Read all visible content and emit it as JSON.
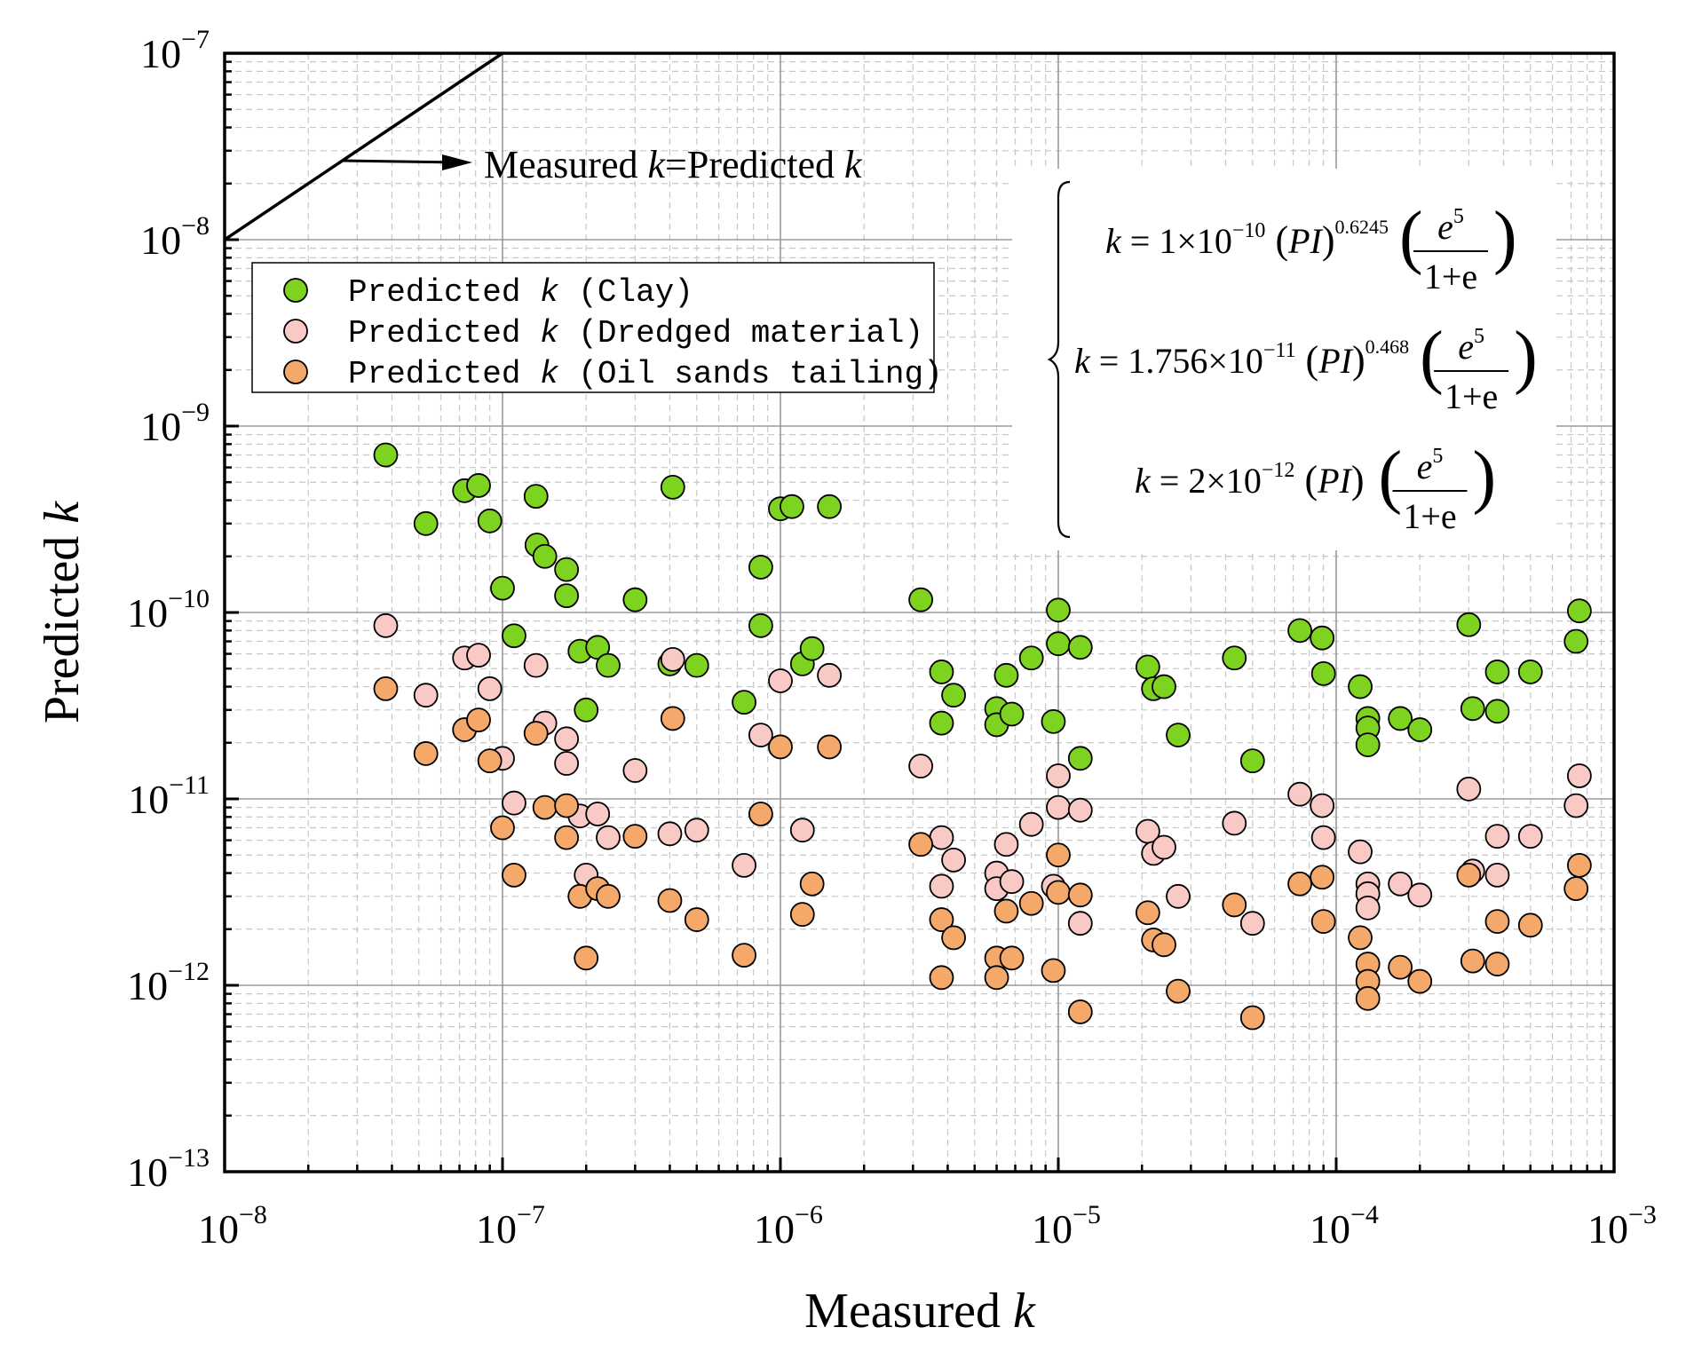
{
  "chart_data": {
    "type": "scatter",
    "title": "",
    "xlabel": "Measured",
    "ylabel": "Predicted",
    "axis_variable": "k",
    "xscale": "log",
    "yscale": "log",
    "xlim": [
      1e-08,
      0.001
    ],
    "ylim": [
      1e-13,
      1e-07
    ],
    "x_ticks": [
      {
        "base": "10",
        "exp": "−8"
      },
      {
        "base": "10",
        "exp": "−7"
      },
      {
        "base": "10",
        "exp": "−6"
      },
      {
        "base": "10",
        "exp": "−5"
      },
      {
        "base": "10",
        "exp": "−4"
      },
      {
        "base": "10",
        "exp": "−3"
      }
    ],
    "y_ticks": [
      {
        "base": "10",
        "exp": "−13"
      },
      {
        "base": "10",
        "exp": "−12"
      },
      {
        "base": "10",
        "exp": "−11"
      },
      {
        "base": "10",
        "exp": "−10"
      },
      {
        "base": "10",
        "exp": "−9"
      },
      {
        "base": "10",
        "exp": "−8"
      },
      {
        "base": "10",
        "exp": "−7"
      }
    ],
    "grid": true,
    "legend_position": "upper-left",
    "reference_line": {
      "label_prefix": "Measured ",
      "label_mid": "=Predicted ",
      "var": "k"
    },
    "series": [
      {
        "name": "Predicted k (Clay)",
        "legend_prefix": "Predicted ",
        "legend_var": "k",
        "legend_suffix": " (Clay)",
        "color": "#7ed321",
        "points": [
          [
            3.8e-08,
            7e-10
          ],
          [
            5.3e-08,
            3e-10
          ],
          [
            7.3e-08,
            4.5e-10
          ],
          [
            8.2e-08,
            4.8e-10
          ],
          [
            9e-08,
            3.1e-10
          ],
          [
            1e-07,
            1.35e-10
          ],
          [
            1.1e-07,
            7.5e-11
          ],
          [
            1.32e-07,
            4.2e-10
          ],
          [
            1.33e-07,
            2.3e-10
          ],
          [
            1.42e-07,
            2e-10
          ],
          [
            1.7e-07,
            1.7e-10
          ],
          [
            1.7e-07,
            1.23e-10
          ],
          [
            1.9e-07,
            6.2e-11
          ],
          [
            2e-07,
            3e-11
          ],
          [
            2.2e-07,
            6.5e-11
          ],
          [
            2.4e-07,
            5.2e-11
          ],
          [
            3e-07,
            1.17e-10
          ],
          [
            4e-07,
            5.3e-11
          ],
          [
            4.1e-07,
            4.7e-10
          ],
          [
            5e-07,
            5.2e-11
          ],
          [
            7.4e-07,
            3.3e-11
          ],
          [
            8.5e-07,
            1.75e-10
          ],
          [
            8.5e-07,
            8.5e-11
          ],
          [
            1e-06,
            3.6e-10
          ],
          [
            1.1e-06,
            3.7e-10
          ],
          [
            1.2e-06,
            5.3e-11
          ],
          [
            1.3e-06,
            6.4e-11
          ],
          [
            1.5e-06,
            3.7e-10
          ],
          [
            3.2e-06,
            1.17e-10
          ],
          [
            3.8e-06,
            4.8e-11
          ],
          [
            4.2e-06,
            3.6e-11
          ],
          [
            3.8e-06,
            2.55e-11
          ],
          [
            6e-06,
            3.05e-11
          ],
          [
            6e-06,
            2.5e-11
          ],
          [
            6.5e-06,
            4.6e-11
          ],
          [
            6.8e-06,
            2.85e-11
          ],
          [
            8e-06,
            5.7e-11
          ],
          [
            9.6e-06,
            2.6e-11
          ],
          [
            1e-05,
            1.03e-10
          ],
          [
            1e-05,
            6.8e-11
          ],
          [
            1.2e-05,
            6.5e-11
          ],
          [
            1.2e-05,
            1.65e-11
          ],
          [
            2.1e-05,
            5.1e-11
          ],
          [
            2.2e-05,
            3.9e-11
          ],
          [
            2.4e-05,
            4e-11
          ],
          [
            2.7e-05,
            2.2e-11
          ],
          [
            4.3e-05,
            5.7e-11
          ],
          [
            5e-05,
            1.6e-11
          ],
          [
            7.4e-05,
            8e-11
          ],
          [
            8.9e-05,
            7.3e-11
          ],
          [
            9e-05,
            4.7e-11
          ],
          [
            0.000122,
            4e-11
          ],
          [
            0.00013,
            2.7e-11
          ],
          [
            0.00013,
            2.4e-11
          ],
          [
            0.00013,
            1.95e-11
          ],
          [
            0.00017,
            2.7e-11
          ],
          [
            0.0002,
            2.35e-11
          ],
          [
            0.0003,
            8.6e-11
          ],
          [
            0.00031,
            3.05e-11
          ],
          [
            0.00038,
            4.8e-11
          ],
          [
            0.00038,
            2.95e-11
          ],
          [
            0.0005,
            4.8e-11
          ],
          [
            0.00073,
            7e-11
          ],
          [
            0.00075,
            1.02e-10
          ]
        ]
      },
      {
        "name": "Predicted k (Dredged material)",
        "legend_prefix": "Predicted ",
        "legend_var": "k",
        "legend_suffix": " (Dredged material)",
        "color": "#f9c9c6",
        "points": [
          [
            3.8e-08,
            8.5e-11
          ],
          [
            5.3e-08,
            3.6e-11
          ],
          [
            7.3e-08,
            5.7e-11
          ],
          [
            8.2e-08,
            5.9e-11
          ],
          [
            9e-08,
            3.9e-11
          ],
          [
            1e-07,
            1.65e-11
          ],
          [
            1.1e-07,
            9.5e-12
          ],
          [
            1.32e-07,
            5.2e-11
          ],
          [
            1.42e-07,
            2.55e-11
          ],
          [
            1.7e-07,
            2.1e-11
          ],
          [
            1.7e-07,
            1.55e-11
          ],
          [
            1.9e-07,
            8.1e-12
          ],
          [
            2e-07,
            3.9e-12
          ],
          [
            2.2e-07,
            8.3e-12
          ],
          [
            2.4e-07,
            6.2e-12
          ],
          [
            3e-07,
            1.42e-11
          ],
          [
            4e-07,
            6.5e-12
          ],
          [
            4.1e-07,
            5.6e-11
          ],
          [
            5e-07,
            6.8e-12
          ],
          [
            7.4e-07,
            4.4e-12
          ],
          [
            8.5e-07,
            2.2e-11
          ],
          [
            1e-06,
            4.3e-11
          ],
          [
            1.2e-06,
            6.8e-12
          ],
          [
            1.5e-06,
            4.6e-11
          ],
          [
            3.2e-06,
            1.5e-11
          ],
          [
            3.8e-06,
            3.4e-12
          ],
          [
            3.8e-06,
            6.2e-12
          ],
          [
            4.2e-06,
            4.7e-12
          ],
          [
            6e-06,
            4e-12
          ],
          [
            6e-06,
            3.3e-12
          ],
          [
            6.5e-06,
            5.7e-12
          ],
          [
            6.8e-06,
            3.6e-12
          ],
          [
            8e-06,
            7.3e-12
          ],
          [
            9.6e-06,
            3.4e-12
          ],
          [
            1e-05,
            1.33e-11
          ],
          [
            1e-05,
            9e-12
          ],
          [
            1.2e-05,
            8.7e-12
          ],
          [
            1.2e-05,
            2.15e-12
          ],
          [
            2.1e-05,
            6.7e-12
          ],
          [
            2.2e-05,
            5.1e-12
          ],
          [
            2.4e-05,
            5.5e-12
          ],
          [
            2.7e-05,
            3e-12
          ],
          [
            4.3e-05,
            7.4e-12
          ],
          [
            5e-05,
            2.15e-12
          ],
          [
            7.4e-05,
            1.06e-11
          ],
          [
            8.9e-05,
            9.2e-12
          ],
          [
            9e-05,
            6.2e-12
          ],
          [
            0.000122,
            5.2e-12
          ],
          [
            0.00013,
            3.5e-12
          ],
          [
            0.00013,
            3.1e-12
          ],
          [
            0.00013,
            2.6e-12
          ],
          [
            0.00017,
            3.5e-12
          ],
          [
            0.0002,
            3.05e-12
          ],
          [
            0.0003,
            1.13e-11
          ],
          [
            0.00031,
            4.1e-12
          ],
          [
            0.00038,
            6.3e-12
          ],
          [
            0.00038,
            3.9e-12
          ],
          [
            0.0005,
            6.3e-12
          ],
          [
            0.00073,
            9.2e-12
          ],
          [
            0.00075,
            1.33e-11
          ]
        ]
      },
      {
        "name": "Predicted k (Oil sands tailing)",
        "legend_prefix": "Predicted ",
        "legend_var": "k",
        "legend_suffix": " (Oil sands tailing)",
        "color": "#f4a96b",
        "points": [
          [
            3.8e-08,
            3.9e-11
          ],
          [
            5.3e-08,
            1.75e-11
          ],
          [
            7.3e-08,
            2.35e-11
          ],
          [
            8.2e-08,
            2.65e-11
          ],
          [
            9e-08,
            1.6e-11
          ],
          [
            1e-07,
            7e-12
          ],
          [
            1.1e-07,
            3.9e-12
          ],
          [
            1.32e-07,
            2.25e-11
          ],
          [
            1.42e-07,
            9e-12
          ],
          [
            1.7e-07,
            9.2e-12
          ],
          [
            1.7e-07,
            6.2e-12
          ],
          [
            1.9e-07,
            3e-12
          ],
          [
            2e-07,
            1.4e-12
          ],
          [
            2.2e-07,
            3.3e-12
          ],
          [
            2.4e-07,
            3e-12
          ],
          [
            3e-07,
            6.3e-12
          ],
          [
            4e-07,
            2.85e-12
          ],
          [
            4.1e-07,
            2.7e-11
          ],
          [
            5e-07,
            2.25e-12
          ],
          [
            7.4e-07,
            1.45e-12
          ],
          [
            8.5e-07,
            8.3e-12
          ],
          [
            1e-06,
            1.9e-11
          ],
          [
            1.2e-06,
            2.4e-12
          ],
          [
            1.3e-06,
            3.5e-12
          ],
          [
            1.5e-06,
            1.9e-11
          ],
          [
            3.2e-06,
            5.7e-12
          ],
          [
            3.8e-06,
            1.1e-12
          ],
          [
            3.8e-06,
            2.25e-12
          ],
          [
            4.2e-06,
            1.8e-12
          ],
          [
            6e-06,
            1.4e-12
          ],
          [
            6e-06,
            1.1e-12
          ],
          [
            6.5e-06,
            2.5e-12
          ],
          [
            6.8e-06,
            1.4e-12
          ],
          [
            8e-06,
            2.75e-12
          ],
          [
            9.6e-06,
            1.2e-12
          ],
          [
            1e-05,
            5e-12
          ],
          [
            1e-05,
            3.15e-12
          ],
          [
            1.2e-05,
            3.05e-12
          ],
          [
            1.2e-05,
            7.2e-13
          ],
          [
            2.1e-05,
            2.45e-12
          ],
          [
            2.2e-05,
            1.75e-12
          ],
          [
            2.4e-05,
            1.65e-12
          ],
          [
            2.7e-05,
            9.3e-13
          ],
          [
            4.3e-05,
            2.7e-12
          ],
          [
            5e-05,
            6.7e-13
          ],
          [
            7.4e-05,
            3.5e-12
          ],
          [
            8.9e-05,
            3.8e-12
          ],
          [
            9e-05,
            2.2e-12
          ],
          [
            0.000122,
            1.8e-12
          ],
          [
            0.00013,
            1.3e-12
          ],
          [
            0.00013,
            1.05e-12
          ],
          [
            0.00013,
            8.5e-13
          ],
          [
            0.00017,
            1.25e-12
          ],
          [
            0.0002,
            1.05e-12
          ],
          [
            0.0003,
            3.9e-12
          ],
          [
            0.00031,
            1.35e-12
          ],
          [
            0.00038,
            2.2e-12
          ],
          [
            0.00038,
            1.3e-12
          ],
          [
            0.0005,
            2.1e-12
          ],
          [
            0.00073,
            3.3e-12
          ],
          [
            0.00075,
            4.4e-12
          ]
        ]
      }
    ],
    "equations": [
      {
        "lhs": "k",
        "coef_text": "1×10",
        "coef_exp": "−10",
        "power": "0.6245"
      },
      {
        "lhs": "k",
        "coef_text": "1.756×10",
        "coef_exp": "−11",
        "power": "0.468"
      },
      {
        "lhs": "k",
        "coef_text": "2×10",
        "coef_exp": "−12",
        "power": ""
      }
    ],
    "equation_parts": {
      "equals": "=",
      "pi": "PI",
      "e_base": "e",
      "e_exp": "5",
      "denominator": "1+e"
    }
  }
}
